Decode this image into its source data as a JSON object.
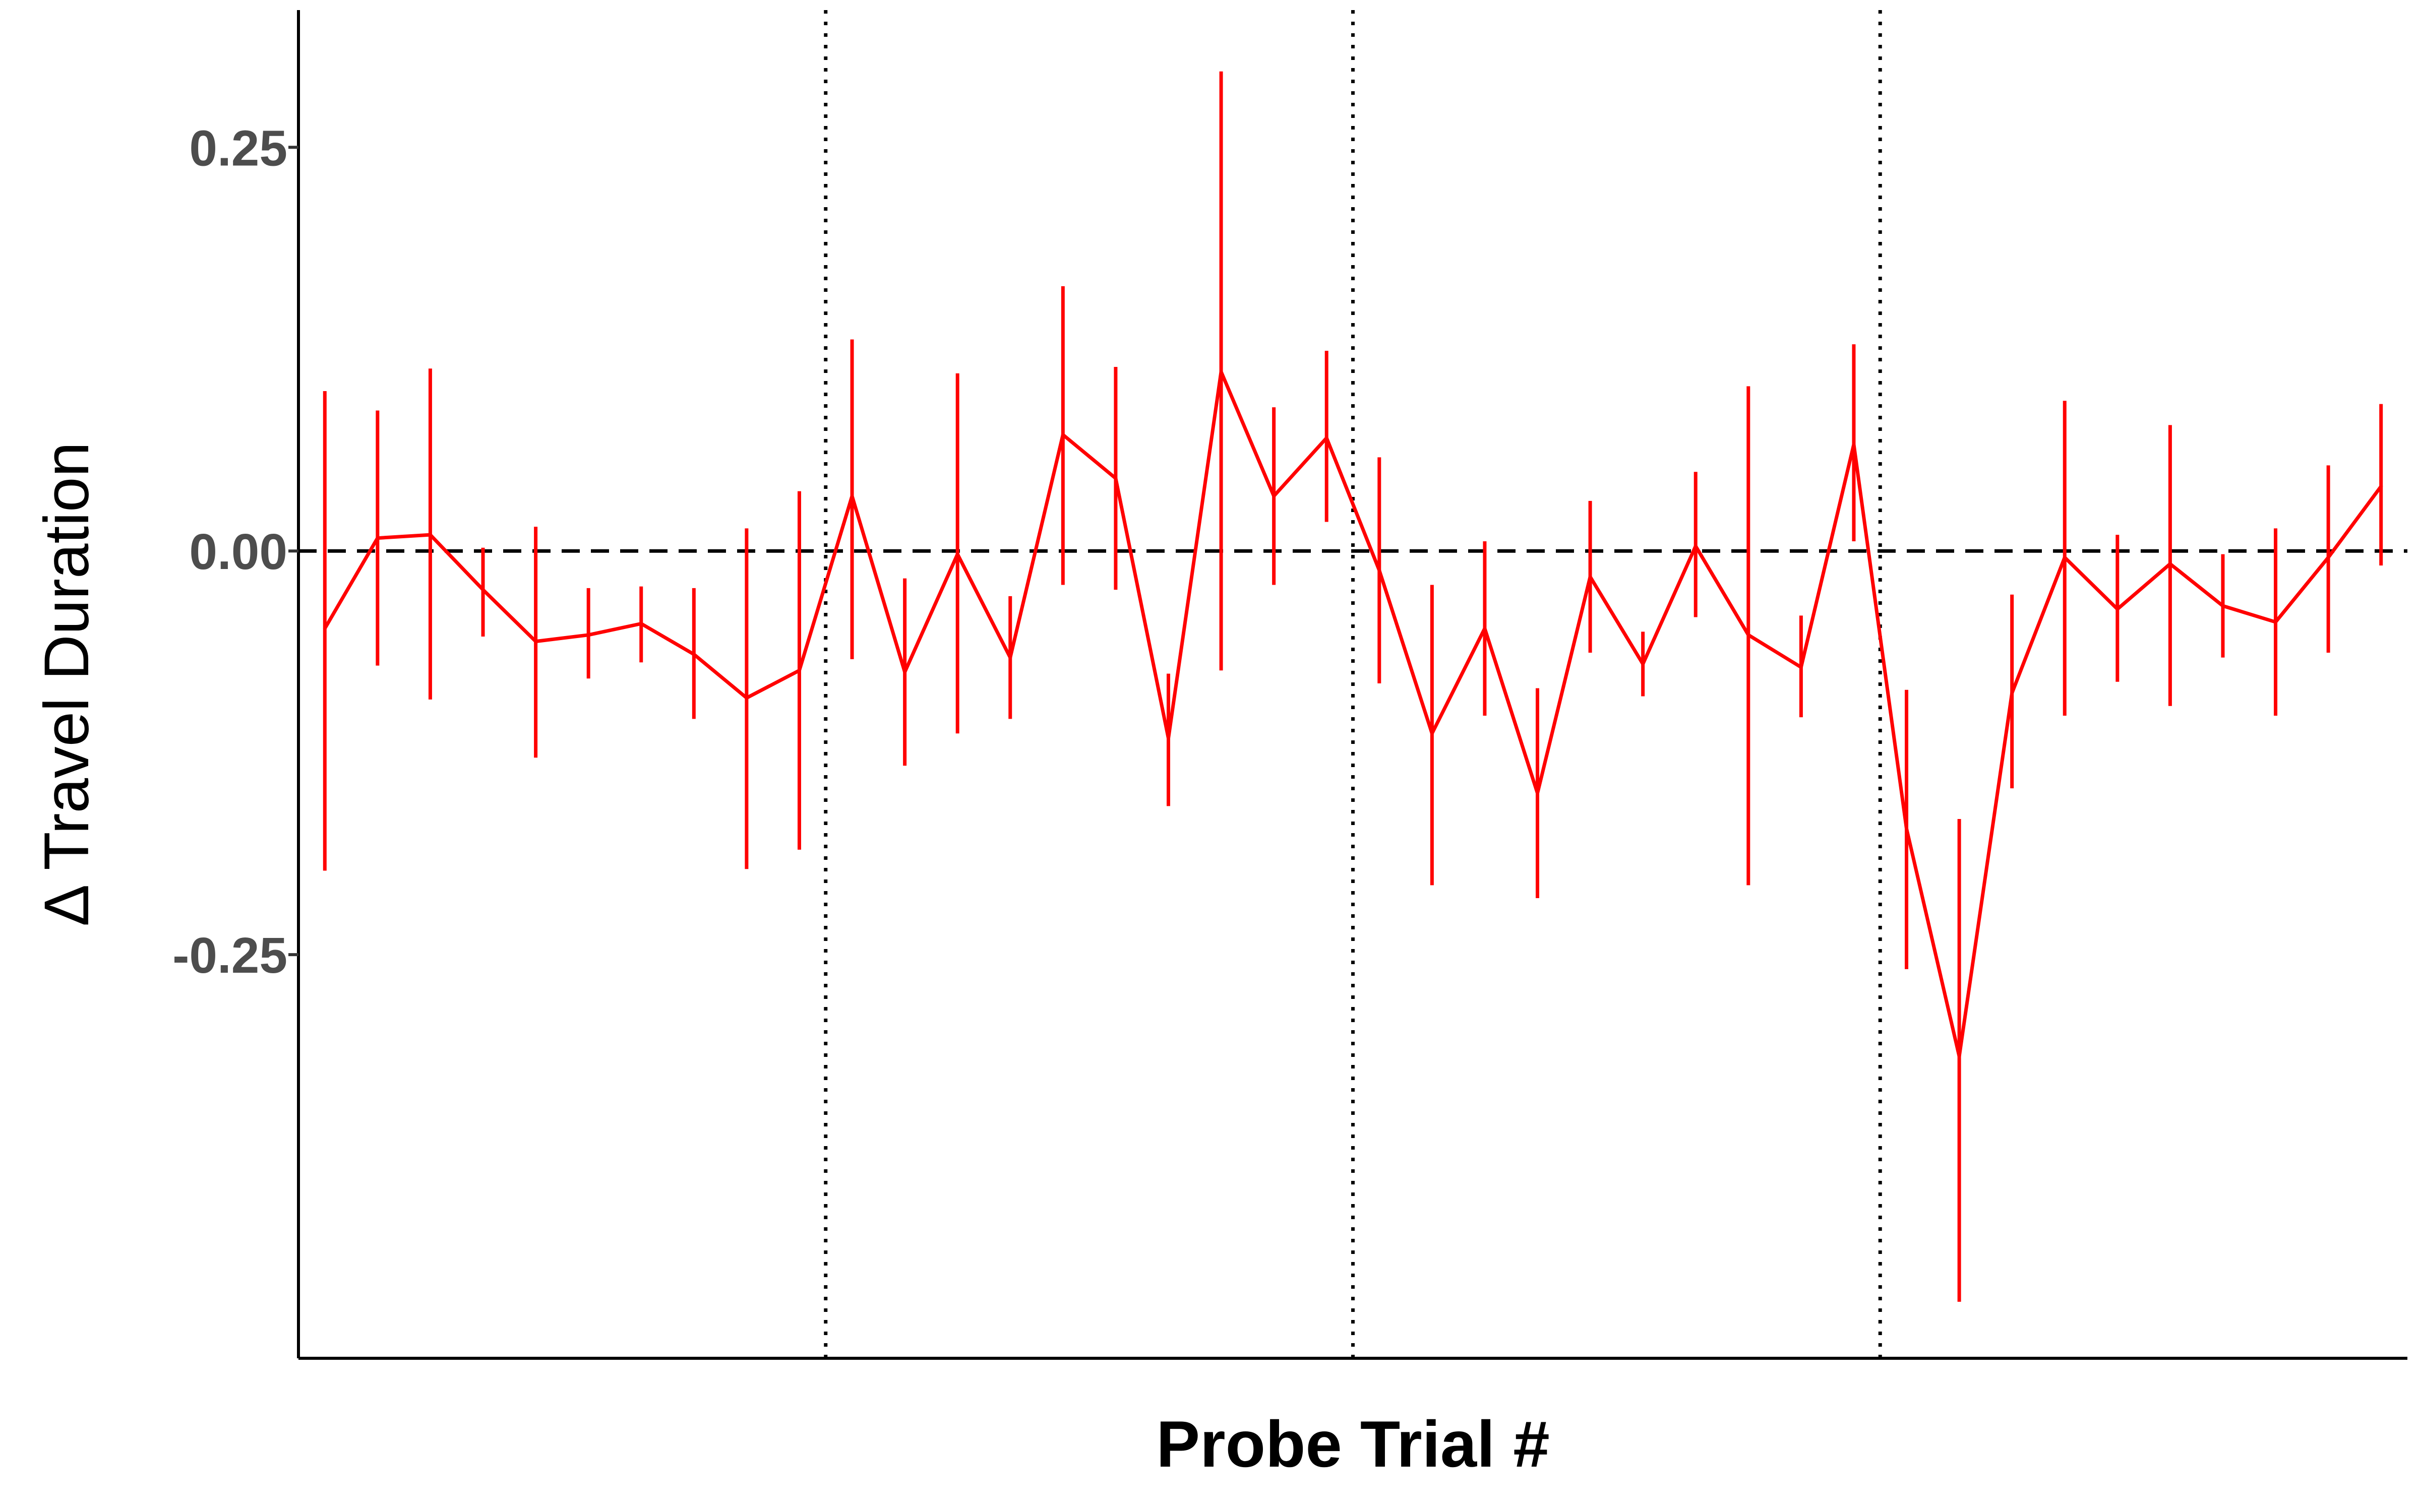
{
  "chart_data": {
    "type": "line",
    "title": "",
    "xlabel": "Probe Trial #",
    "ylabel": "Δ Travel Duration",
    "ylim": [
      -0.5,
      0.335
    ],
    "y_ticks": [
      {
        "value": 0.25,
        "label": "0.25"
      },
      {
        "value": 0.0,
        "label": "0.00"
      },
      {
        "value": -0.25,
        "label": "-0.25"
      }
    ],
    "x_range": [
      0.5,
      40.5
    ],
    "x_tick_labels_shown": false,
    "reference_hline": 0.0,
    "block_separators_x": [
      10.5,
      20.5,
      30.5
    ],
    "grid": false,
    "legend": "none",
    "line_color": "#ff0000",
    "series": [
      {
        "x": [
          1,
          2,
          3,
          4,
          5,
          6,
          7,
          8,
          9,
          10,
          11,
          12,
          13,
          14,
          15,
          16,
          17,
          18,
          19,
          20,
          21,
          22,
          23,
          24,
          25,
          26,
          27,
          28,
          29,
          30,
          31,
          32,
          33,
          34,
          35,
          36,
          37,
          38,
          39,
          40
        ],
        "y": [
          -0.048,
          0.008,
          0.01,
          -0.024,
          -0.056,
          -0.052,
          -0.045,
          -0.064,
          -0.091,
          -0.074,
          0.034,
          -0.075,
          -0.002,
          -0.066,
          0.072,
          0.045,
          -0.116,
          0.111,
          0.034,
          0.07,
          -0.012,
          -0.113,
          -0.048,
          -0.15,
          -0.016,
          -0.07,
          0.003,
          -0.052,
          -0.072,
          0.066,
          -0.172,
          -0.313,
          -0.088,
          -0.004,
          -0.036,
          -0.008,
          -0.034,
          -0.044,
          -0.004,
          0.04
        ],
        "y_low": [
          -0.198,
          -0.071,
          -0.092,
          -0.053,
          -0.128,
          -0.079,
          -0.069,
          -0.104,
          -0.197,
          -0.185,
          -0.067,
          -0.133,
          -0.113,
          -0.104,
          -0.021,
          -0.024,
          -0.158,
          -0.074,
          -0.021,
          0.018,
          -0.082,
          -0.207,
          -0.102,
          -0.215,
          -0.063,
          -0.09,
          -0.041,
          -0.207,
          -0.103,
          0.006,
          -0.259,
          -0.465,
          -0.147,
          -0.102,
          -0.081,
          -0.096,
          -0.066,
          -0.102,
          -0.063,
          -0.009
        ],
        "y_high": [
          0.099,
          0.087,
          0.113,
          0.002,
          0.015,
          -0.023,
          -0.022,
          -0.023,
          0.014,
          0.037,
          0.131,
          -0.017,
          0.11,
          -0.028,
          0.164,
          0.114,
          -0.076,
          0.297,
          0.089,
          0.124,
          0.058,
          -0.021,
          0.006,
          -0.085,
          0.031,
          -0.05,
          0.049,
          0.102,
          -0.04,
          0.128,
          -0.086,
          -0.166,
          -0.027,
          0.093,
          0.01,
          0.078,
          -0.002,
          0.014,
          0.053,
          0.091
        ]
      }
    ]
  }
}
